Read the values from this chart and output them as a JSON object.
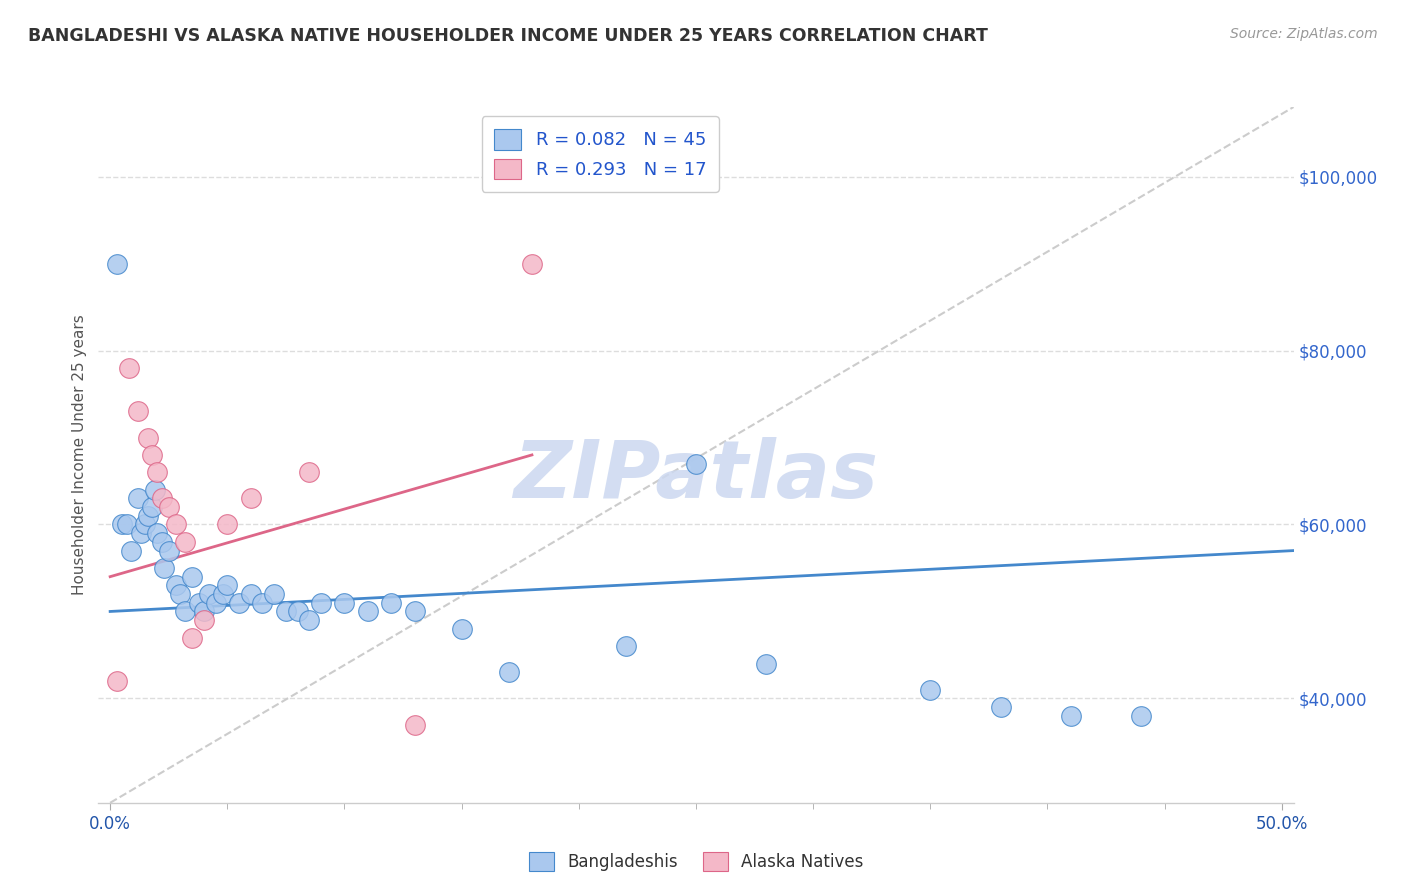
{
  "title": "BANGLADESHI VS ALASKA NATIVE HOUSEHOLDER INCOME UNDER 25 YEARS CORRELATION CHART",
  "source": "Source: ZipAtlas.com",
  "ylabel": "Householder Income Under 25 years",
  "xlim": [
    -0.005,
    0.505
  ],
  "ylim": [
    28000,
    108000
  ],
  "ylabel_ticks": [
    "$40,000",
    "$60,000",
    "$80,000",
    "$100,000"
  ],
  "ylabel_tick_vals": [
    40000,
    60000,
    80000,
    100000
  ],
  "legend_blue_label": "R = 0.082   N = 45",
  "legend_pink_label": "R = 0.293   N = 17",
  "legend_bottom_blue": "Bangladeshis",
  "legend_bottom_pink": "Alaska Natives",
  "blue_color": "#aac8ee",
  "pink_color": "#f4b8c8",
  "blue_line_color": "#4488cc",
  "pink_line_color": "#dd6688",
  "diag_line_color": "#cccccc",
  "watermark": "ZIPatlas",
  "watermark_blue": "#ccd8f0",
  "watermark_pink": "#f0c8d8",
  "blue_scatter_x": [
    0.003,
    0.005,
    0.007,
    0.009,
    0.012,
    0.013,
    0.015,
    0.016,
    0.018,
    0.019,
    0.02,
    0.022,
    0.023,
    0.025,
    0.028,
    0.03,
    0.032,
    0.035,
    0.038,
    0.04,
    0.042,
    0.045,
    0.048,
    0.05,
    0.055,
    0.06,
    0.065,
    0.07,
    0.075,
    0.08,
    0.085,
    0.09,
    0.1,
    0.11,
    0.12,
    0.13,
    0.15,
    0.17,
    0.22,
    0.25,
    0.28,
    0.35,
    0.38,
    0.41,
    0.44
  ],
  "blue_scatter_y": [
    90000,
    60000,
    60000,
    57000,
    63000,
    59000,
    60000,
    61000,
    62000,
    64000,
    59000,
    58000,
    55000,
    57000,
    53000,
    52000,
    50000,
    54000,
    51000,
    50000,
    52000,
    51000,
    52000,
    53000,
    51000,
    52000,
    51000,
    52000,
    50000,
    50000,
    49000,
    51000,
    51000,
    50000,
    51000,
    50000,
    48000,
    43000,
    46000,
    67000,
    44000,
    41000,
    39000,
    38000,
    38000
  ],
  "pink_scatter_x": [
    0.003,
    0.008,
    0.012,
    0.016,
    0.018,
    0.02,
    0.022,
    0.025,
    0.028,
    0.032,
    0.035,
    0.04,
    0.05,
    0.06,
    0.085,
    0.13,
    0.18
  ],
  "pink_scatter_y": [
    42000,
    78000,
    73000,
    70000,
    68000,
    66000,
    63000,
    62000,
    60000,
    58000,
    47000,
    49000,
    60000,
    63000,
    66000,
    37000,
    90000
  ],
  "blue_line_x0": 0.0,
  "blue_line_x1": 0.505,
  "blue_line_y0": 50000,
  "blue_line_y1": 57000,
  "pink_line_x0": 0.0,
  "pink_line_x1": 0.18,
  "pink_line_y0": 54000,
  "pink_line_y1": 68000,
  "diag_line_x0": 0.0,
  "diag_line_x1": 0.505,
  "diag_line_y0": 28000,
  "diag_line_y1": 108000
}
